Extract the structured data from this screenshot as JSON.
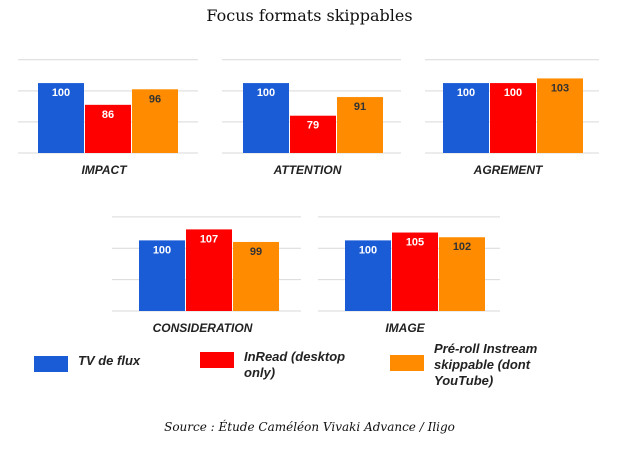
{
  "title": "Focus formats skippables",
  "source": "Source : Étude Caméléon Vivaki Advance / Iligo",
  "legend": [
    {
      "label": "TV de flux",
      "color": "#1a5bd6"
    },
    {
      "label": "InRead (desktop only)",
      "color": "#ff0000"
    },
    {
      "label": "Pré-roll Instream skippable (dont YouTube)",
      "color": "#ff8c00"
    }
  ],
  "chart_data": [
    {
      "type": "bar",
      "title": "IMPACT",
      "categories": [
        "TV de flux",
        "InRead (desktop only)",
        "Pré-roll Instream skippable (dont YouTube)"
      ],
      "values": [
        100,
        86,
        96
      ],
      "ylim": [
        55,
        120
      ],
      "grid": true
    },
    {
      "type": "bar",
      "title": "ATTENTION",
      "categories": [
        "TV de flux",
        "InRead (desktop only)",
        "Pré-roll Instream skippable (dont YouTube)"
      ],
      "values": [
        100,
        79,
        91
      ],
      "ylim": [
        55,
        120
      ],
      "grid": true
    },
    {
      "type": "bar",
      "title": "AGREMENT",
      "categories": [
        "TV de flux",
        "InRead (desktop only)",
        "Pré-roll Instream skippable (dont YouTube)"
      ],
      "values": [
        100,
        100,
        103
      ],
      "ylim": [
        55,
        120
      ],
      "grid": true
    },
    {
      "type": "bar",
      "title": "CONSIDERATION",
      "categories": [
        "TV de flux",
        "InRead (desktop only)",
        "Pré-roll Instream skippable (dont YouTube)"
      ],
      "values": [
        100,
        107,
        99
      ],
      "ylim": [
        55,
        120
      ],
      "grid": true
    },
    {
      "type": "bar",
      "title": "IMAGE",
      "categories": [
        "TV de flux",
        "InRead (desktop only)",
        "Pré-roll Instream skippable (dont YouTube)"
      ],
      "values": [
        100,
        105,
        102
      ],
      "ylim": [
        55,
        120
      ],
      "grid": true
    }
  ]
}
